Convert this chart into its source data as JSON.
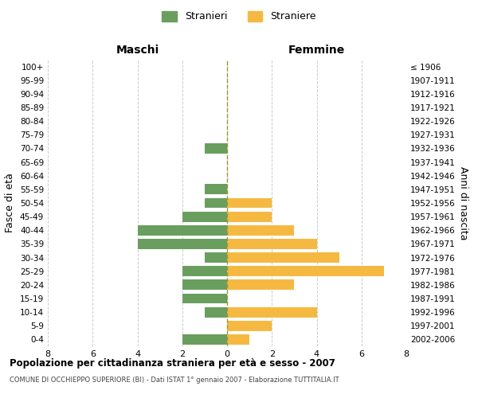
{
  "age_groups": [
    "100+",
    "95-99",
    "90-94",
    "85-89",
    "80-84",
    "75-79",
    "70-74",
    "65-69",
    "60-64",
    "55-59",
    "50-54",
    "45-49",
    "40-44",
    "35-39",
    "30-34",
    "25-29",
    "20-24",
    "15-19",
    "10-14",
    "5-9",
    "0-4"
  ],
  "birth_years": [
    "≤ 1906",
    "1907-1911",
    "1912-1916",
    "1917-1921",
    "1922-1926",
    "1927-1931",
    "1932-1936",
    "1937-1941",
    "1942-1946",
    "1947-1951",
    "1952-1956",
    "1957-1961",
    "1962-1966",
    "1967-1971",
    "1972-1976",
    "1977-1981",
    "1982-1986",
    "1987-1991",
    "1992-1996",
    "1997-2001",
    "2002-2006"
  ],
  "maschi": [
    0,
    0,
    0,
    0,
    0,
    0,
    1,
    0,
    0,
    1,
    1,
    2,
    4,
    4,
    1,
    2,
    2,
    2,
    1,
    0,
    2
  ],
  "femmine": [
    0,
    0,
    0,
    0,
    0,
    0,
    0,
    0,
    0,
    0,
    2,
    2,
    3,
    4,
    5,
    7,
    3,
    0,
    4,
    2,
    1
  ],
  "color_maschi": "#6a9e5e",
  "color_femmine": "#f5b942",
  "title_main": "Popolazione per cittadinanza straniera per età e sesso - 2007",
  "title_sub": "COMUNE DI OCCHIEPPO SUPERIORE (BI) - Dati ISTAT 1° gennaio 2007 - Elaborazione TUTTITALIA.IT",
  "xlabel_left": "Maschi",
  "xlabel_right": "Femmine",
  "ylabel_left": "Fasce di età",
  "ylabel_right": "Anni di nascita",
  "legend_maschi": "Stranieri",
  "legend_femmine": "Straniere",
  "xlim": 8,
  "background_color": "#ffffff",
  "grid_color": "#cccccc",
  "dashed_line_color": "#999933"
}
